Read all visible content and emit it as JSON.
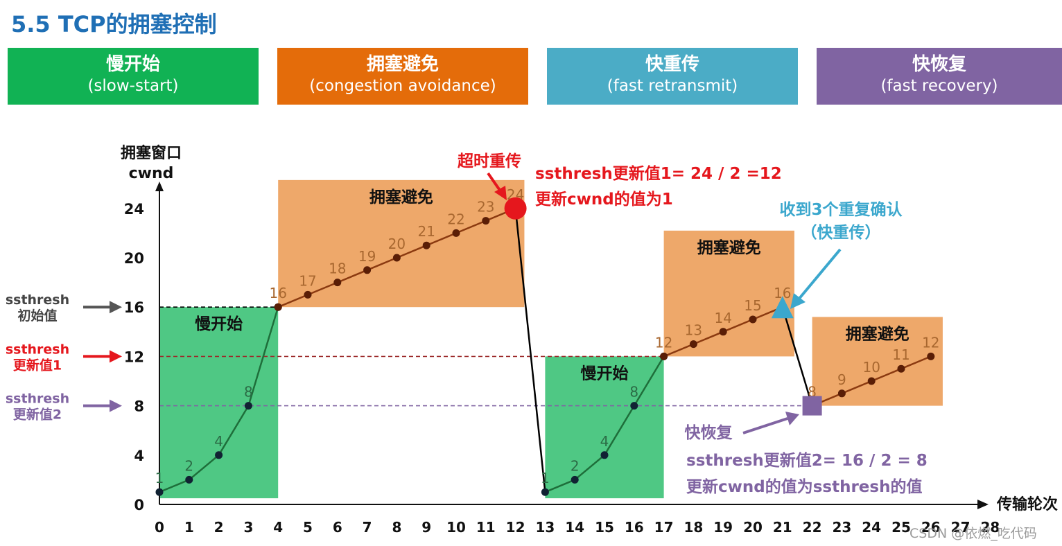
{
  "page": {
    "title": "5.5 TCP的拥塞控制",
    "watermark": "CSDN @依燃_吃代码"
  },
  "phases": [
    {
      "cn": "慢开始",
      "en": "(slow-start)",
      "color": "#11b254"
    },
    {
      "cn": "拥塞避免",
      "en": "(congestion avoidance)",
      "color": "#e46c0a"
    },
    {
      "cn": "快重传",
      "en": "(fast retransmit)",
      "color": "#4bacc6"
    },
    {
      "cn": "快恢复",
      "en": "(fast recovery)",
      "color": "#8064a2"
    }
  ],
  "chart_data": {
    "type": "line",
    "ylabel_line1": "拥塞窗口",
    "ylabel_line2": "cwnd",
    "xlabel": "传输轮次",
    "xlim": [
      0,
      28
    ],
    "ylim": [
      0,
      26
    ],
    "xticks": [
      0,
      1,
      2,
      3,
      4,
      5,
      6,
      7,
      8,
      9,
      10,
      11,
      12,
      13,
      14,
      15,
      16,
      17,
      18,
      19,
      20,
      21,
      22,
      23,
      24,
      25,
      26,
      27,
      28
    ],
    "yticks": [
      0,
      4,
      8,
      12,
      16,
      20,
      24
    ],
    "series": [
      {
        "name": "",
        "color": "#1e6e3a",
        "points": [
          [
            0,
            1
          ],
          [
            1,
            2
          ],
          [
            2,
            4
          ],
          [
            3,
            8
          ],
          [
            4,
            16
          ]
        ]
      },
      {
        "name": "",
        "color": "#8b3a10",
        "points": [
          [
            4,
            16
          ],
          [
            5,
            17
          ],
          [
            6,
            18
          ],
          [
            7,
            19
          ],
          [
            8,
            20
          ],
          [
            9,
            21
          ],
          [
            10,
            22
          ],
          [
            11,
            23
          ],
          [
            12,
            24
          ]
        ]
      },
      {
        "name": "",
        "color": "#000000",
        "points": [
          [
            12,
            24
          ],
          [
            13,
            1
          ]
        ]
      },
      {
        "name": "",
        "color": "#1e6e3a",
        "points": [
          [
            13,
            1
          ],
          [
            14,
            2
          ],
          [
            15,
            4
          ],
          [
            16,
            8
          ],
          [
            17,
            12
          ]
        ]
      },
      {
        "name": "",
        "color": "#8b3a10",
        "points": [
          [
            17,
            12
          ],
          [
            18,
            13
          ],
          [
            19,
            14
          ],
          [
            20,
            15
          ],
          [
            21,
            16
          ]
        ]
      },
      {
        "name": "",
        "color": "#000000",
        "points": [
          [
            21,
            16
          ],
          [
            22,
            8
          ]
        ]
      },
      {
        "name": "",
        "color": "#8b3a10",
        "points": [
          [
            22,
            8
          ],
          [
            23,
            9
          ],
          [
            24,
            10
          ],
          [
            25,
            11
          ],
          [
            26,
            12
          ]
        ]
      }
    ],
    "point_labels": [
      {
        "x": 0,
        "y": 1,
        "text": "1"
      },
      {
        "x": 1,
        "y": 2,
        "text": "2"
      },
      {
        "x": 2,
        "y": 4,
        "text": "4"
      },
      {
        "x": 3,
        "y": 8,
        "text": "8"
      },
      {
        "x": 4,
        "y": 16,
        "text": "16"
      },
      {
        "x": 5,
        "y": 17,
        "text": "17"
      },
      {
        "x": 6,
        "y": 18,
        "text": "18"
      },
      {
        "x": 7,
        "y": 19,
        "text": "19"
      },
      {
        "x": 8,
        "y": 20,
        "text": "20"
      },
      {
        "x": 9,
        "y": 21,
        "text": "21"
      },
      {
        "x": 10,
        "y": 22,
        "text": "22"
      },
      {
        "x": 11,
        "y": 23,
        "text": "23"
      },
      {
        "x": 12,
        "y": 24,
        "text": "24"
      },
      {
        "x": 13,
        "y": 1,
        "text": "1"
      },
      {
        "x": 14,
        "y": 2,
        "text": "2"
      },
      {
        "x": 15,
        "y": 4,
        "text": "4"
      },
      {
        "x": 16,
        "y": 8,
        "text": "8"
      },
      {
        "x": 17,
        "y": 12,
        "text": "12"
      },
      {
        "x": 18,
        "y": 13,
        "text": "13"
      },
      {
        "x": 19,
        "y": 14,
        "text": "14"
      },
      {
        "x": 20,
        "y": 15,
        "text": "15"
      },
      {
        "x": 21,
        "y": 16,
        "text": "16"
      },
      {
        "x": 22,
        "y": 8,
        "text": "8"
      },
      {
        "x": 23,
        "y": 9,
        "text": "9"
      },
      {
        "x": 24,
        "y": 10,
        "text": "10"
      },
      {
        "x": 25,
        "y": 11,
        "text": "11"
      },
      {
        "x": 26,
        "y": 12,
        "text": "12"
      }
    ],
    "regions": [
      {
        "label": "慢开始",
        "x0": 0,
        "x1": 4,
        "y0": 0.5,
        "y1": 16,
        "color": "#4fc884"
      },
      {
        "label": "拥塞避免",
        "x0": 4,
        "x1": 12.3,
        "y0": 16,
        "y1": 26.3,
        "color": "#eea86a"
      },
      {
        "label": "慢开始",
        "x0": 13,
        "x1": 17,
        "y0": 0.5,
        "y1": 12,
        "color": "#4fc884"
      },
      {
        "label": "拥塞避免",
        "x0": 17,
        "x1": 21.4,
        "y0": 12,
        "y1": 22.2,
        "color": "#eea86a"
      },
      {
        "label": "拥塞避免",
        "x0": 22,
        "x1": 26.4,
        "y0": 8,
        "y1": 15.2,
        "color": "#eea86a"
      }
    ],
    "thresholds": [
      {
        "y": 16,
        "line_color": "#000000",
        "arrow_color": "#555555",
        "label_line1": "ssthresh",
        "label_line2": "初始值",
        "text_color": "#444444",
        "x_end": 4
      },
      {
        "y": 12,
        "line_color": "#9c2b2b",
        "arrow_color": "#e5171d",
        "label_line1": "ssthresh",
        "label_line2": "更新值1",
        "text_color": "#e5171d",
        "x_end": 17
      },
      {
        "y": 8,
        "line_color": "#8064a2",
        "arrow_color": "#8064a2",
        "label_line1": "ssthresh",
        "label_line2": "更新值2",
        "text_color": "#8064a2",
        "x_end": 22
      }
    ],
    "markers": [
      {
        "shape": "circle",
        "x": 12,
        "y": 24,
        "color": "#e5171d"
      },
      {
        "shape": "triangle",
        "x": 21,
        "y": 16,
        "color": "#3ba7cd"
      },
      {
        "shape": "square",
        "x": 22,
        "y": 8,
        "color": "#8064a2"
      }
    ],
    "annotations": {
      "timeout": "超时重传",
      "timeout_note1": "ssthresh更新值1= 24 / 2 =12",
      "timeout_note2": "更新cwnd的值为1",
      "dupack1": "收到3个重复确认",
      "dupack2": "（快重传）",
      "fastrec": "快恢复",
      "fastrec_note1": "ssthresh更新值2= 16 / 2 = 8",
      "fastrec_note2": "更新cwnd的值为ssthresh的值"
    },
    "grid": false
  }
}
